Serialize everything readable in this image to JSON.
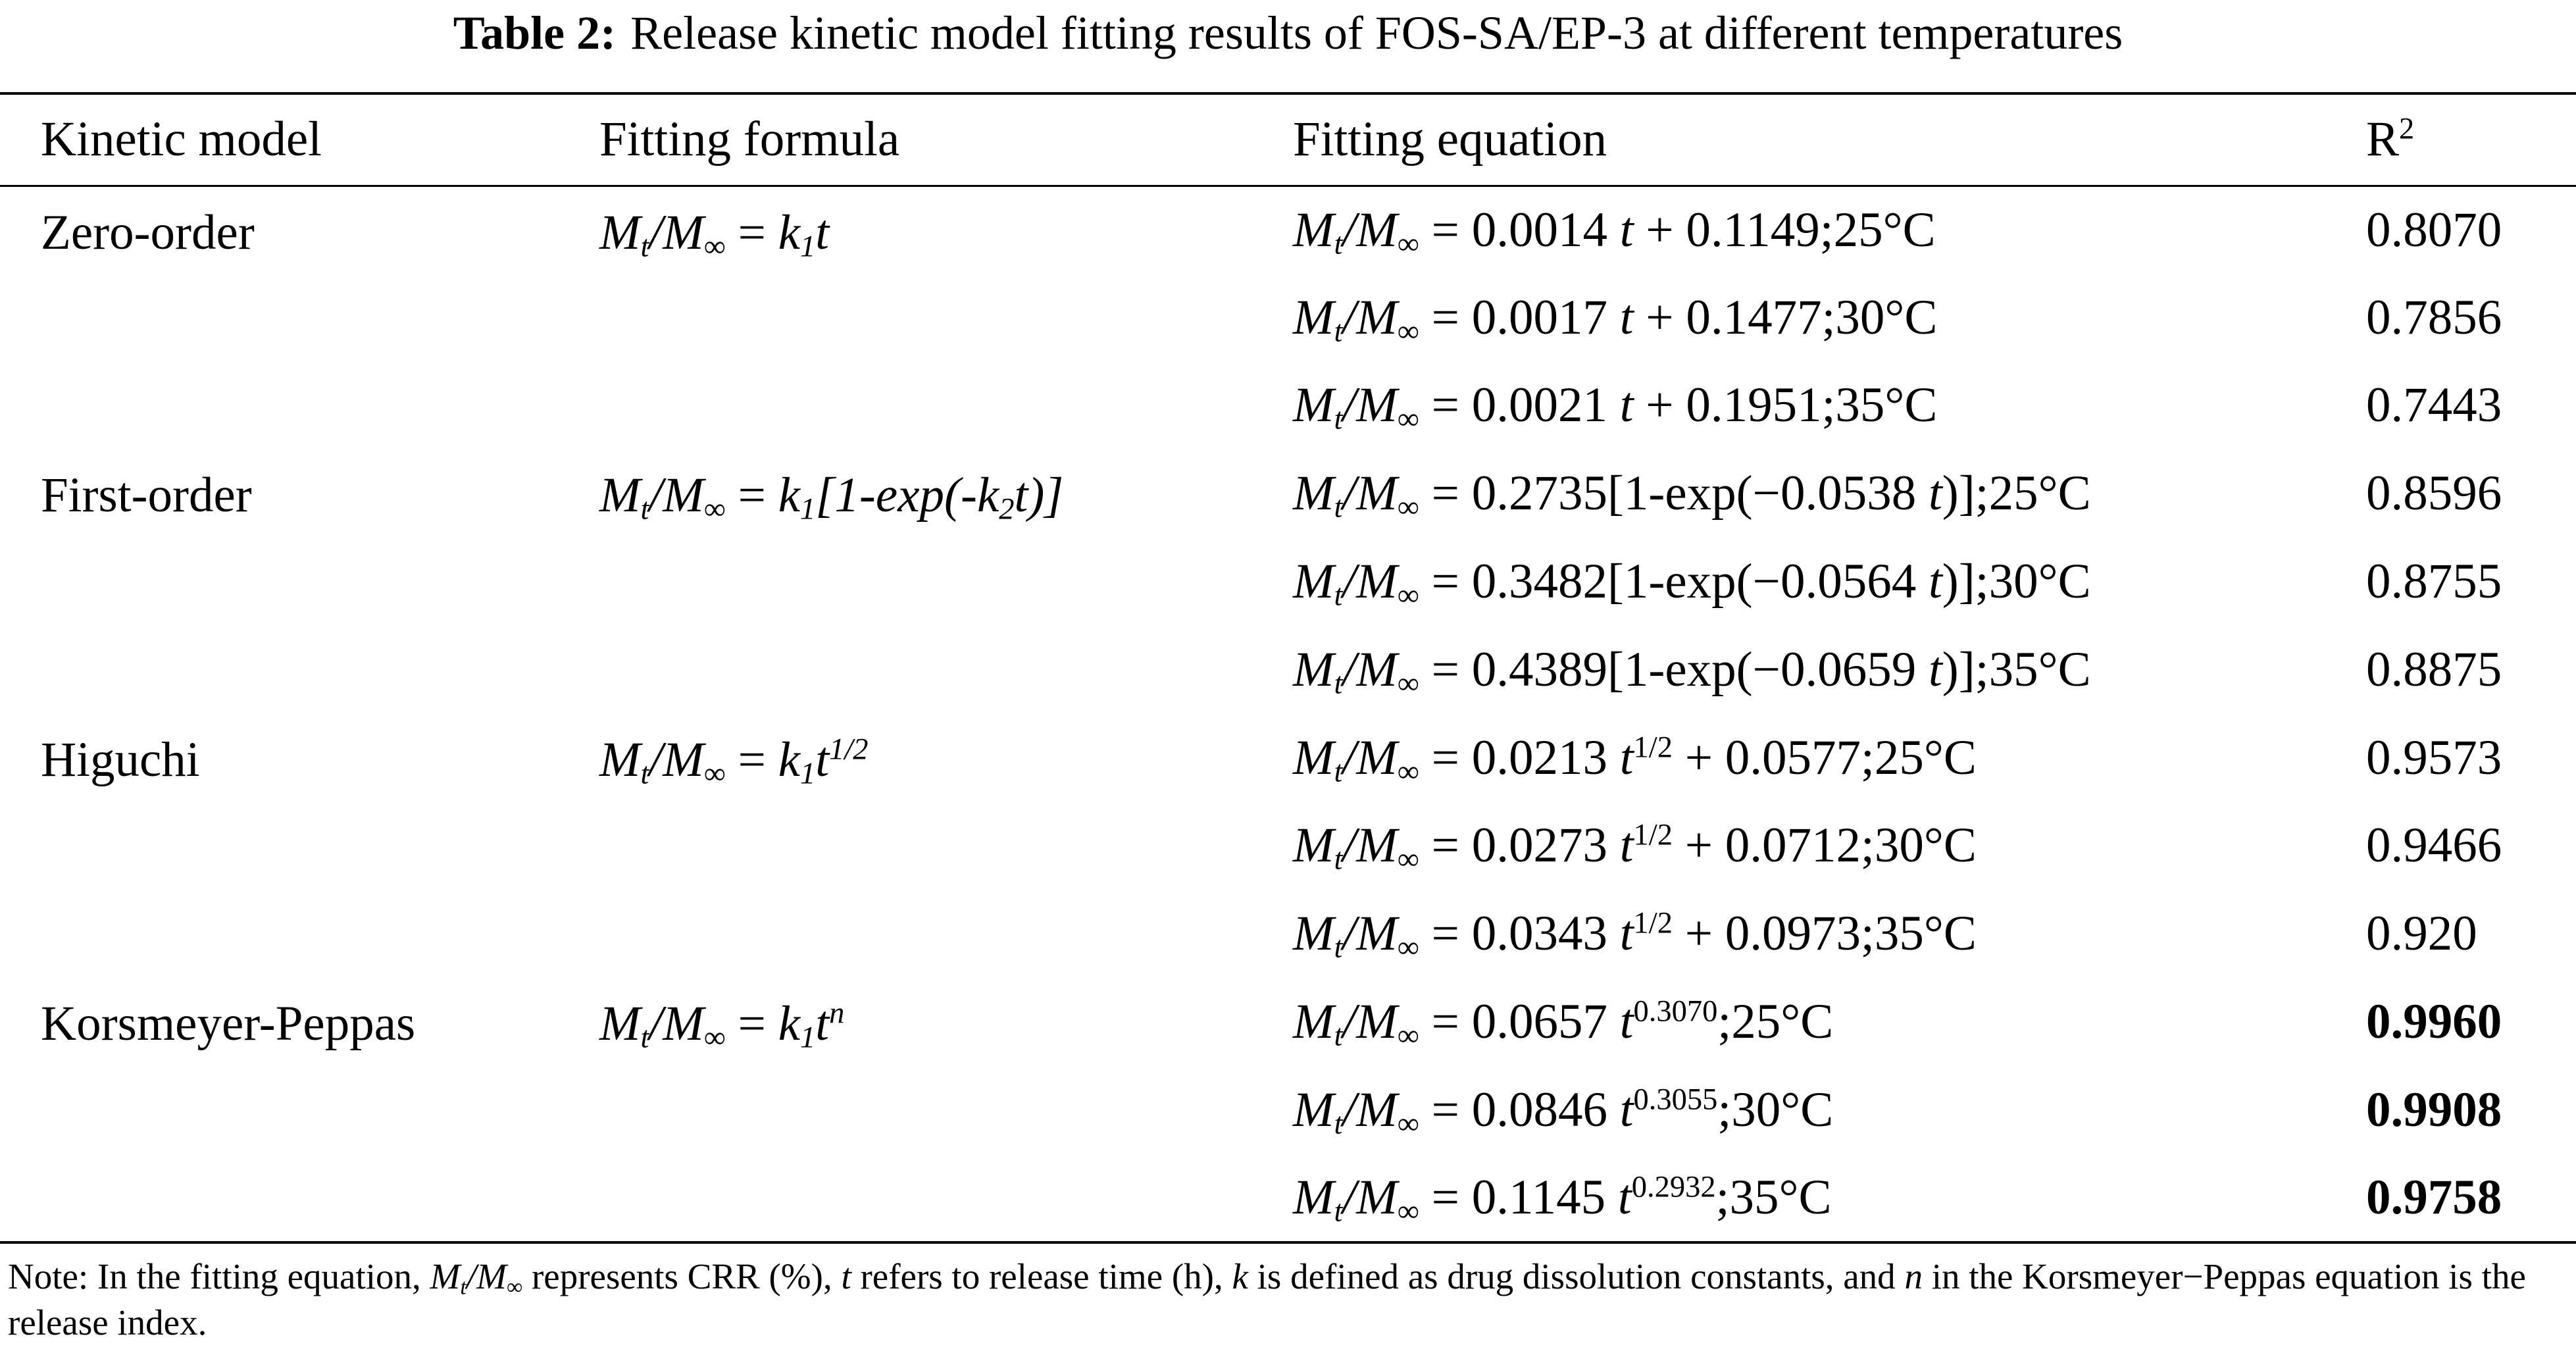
{
  "title": {
    "label": "Table 2:",
    "text": "Release kinetic model fitting results of FOS-SA/EP-3 at different temperatures"
  },
  "table": {
    "header": [
      [
        {
          "t": "Kinetic model"
        }
      ],
      [
        {
          "t": "Fitting formula"
        }
      ],
      [
        {
          "t": "Fitting equation"
        }
      ],
      [
        {
          "t": "R"
        },
        {
          "t": "2",
          "f": "sup"
        }
      ]
    ],
    "groups": [
      {
        "model": "Zero-order",
        "formula": [
          {
            "t": "M",
            "f": "i"
          },
          {
            "t": "t",
            "f": "isub"
          },
          {
            "t": "/M",
            "f": "i"
          },
          {
            "t": "∞",
            "f": "sub"
          },
          {
            "t": " = "
          },
          {
            "t": "k",
            "f": "i"
          },
          {
            "t": "1",
            "f": "isub"
          },
          {
            "t": "t",
            "f": "i"
          }
        ],
        "fits": [
          {
            "equation": [
              {
                "t": "M",
                "f": "i"
              },
              {
                "t": "t",
                "f": "isub"
              },
              {
                "t": "/M",
                "f": "i"
              },
              {
                "t": "∞",
                "f": "sub"
              },
              {
                "t": " = 0.0014 "
              },
              {
                "t": "t",
                "f": "i"
              },
              {
                "t": " + 0.1149;25°C"
              }
            ],
            "r2": "0.8070"
          },
          {
            "equation": [
              {
                "t": "M",
                "f": "i"
              },
              {
                "t": "t",
                "f": "isub"
              },
              {
                "t": "/M",
                "f": "i"
              },
              {
                "t": "∞",
                "f": "sub"
              },
              {
                "t": " = 0.0017 "
              },
              {
                "t": "t",
                "f": "i"
              },
              {
                "t": " + 0.1477;30°C"
              }
            ],
            "r2": "0.7856"
          },
          {
            "equation": [
              {
                "t": "M",
                "f": "i"
              },
              {
                "t": "t",
                "f": "isub"
              },
              {
                "t": "/M",
                "f": "i"
              },
              {
                "t": "∞",
                "f": "sub"
              },
              {
                "t": " = 0.0021 "
              },
              {
                "t": "t",
                "f": "i"
              },
              {
                "t": " + 0.1951;35°C"
              }
            ],
            "r2": "0.7443"
          }
        ]
      },
      {
        "model": "First-order",
        "formula": [
          {
            "t": "M",
            "f": "i"
          },
          {
            "t": "t",
            "f": "isub"
          },
          {
            "t": "/M",
            "f": "i"
          },
          {
            "t": "∞",
            "f": "sub"
          },
          {
            "t": " = "
          },
          {
            "t": "k",
            "f": "i"
          },
          {
            "t": "1",
            "f": "isub"
          },
          {
            "t": "[1-exp(-k",
            "f": "i"
          },
          {
            "t": "2",
            "f": "isub"
          },
          {
            "t": "t)]",
            "f": "i"
          }
        ],
        "fits": [
          {
            "equation": [
              {
                "t": "M",
                "f": "i"
              },
              {
                "t": "t",
                "f": "isub"
              },
              {
                "t": "/M",
                "f": "i"
              },
              {
                "t": "∞",
                "f": "sub"
              },
              {
                "t": " = 0.2735[1-exp(−0.0538 "
              },
              {
                "t": "t",
                "f": "i"
              },
              {
                "t": ")];25°C"
              }
            ],
            "r2": "0.8596"
          },
          {
            "equation": [
              {
                "t": "M",
                "f": "i"
              },
              {
                "t": "t",
                "f": "isub"
              },
              {
                "t": "/M",
                "f": "i"
              },
              {
                "t": "∞",
                "f": "sub"
              },
              {
                "t": " = 0.3482[1-exp(−0.0564 "
              },
              {
                "t": "t",
                "f": "i"
              },
              {
                "t": ")];30°C"
              }
            ],
            "r2": "0.8755"
          },
          {
            "equation": [
              {
                "t": "M",
                "f": "i"
              },
              {
                "t": "t",
                "f": "isub"
              },
              {
                "t": "/M",
                "f": "i"
              },
              {
                "t": "∞",
                "f": "sub"
              },
              {
                "t": " = 0.4389[1-exp(−0.0659 "
              },
              {
                "t": "t",
                "f": "i"
              },
              {
                "t": ")];35°C"
              }
            ],
            "r2": "0.8875"
          }
        ]
      },
      {
        "model": "Higuchi",
        "formula": [
          {
            "t": "M",
            "f": "i"
          },
          {
            "t": "t",
            "f": "isub"
          },
          {
            "t": "/M",
            "f": "i"
          },
          {
            "t": "∞",
            "f": "sub"
          },
          {
            "t": " = "
          },
          {
            "t": "k",
            "f": "i"
          },
          {
            "t": "1",
            "f": "isub"
          },
          {
            "t": "t",
            "f": "i"
          },
          {
            "t": "1/2",
            "f": "isup"
          }
        ],
        "fits": [
          {
            "equation": [
              {
                "t": "M",
                "f": "i"
              },
              {
                "t": "t",
                "f": "isub"
              },
              {
                "t": "/M",
                "f": "i"
              },
              {
                "t": "∞",
                "f": "sub"
              },
              {
                "t": " = 0.0213 "
              },
              {
                "t": "t",
                "f": "i"
              },
              {
                "t": "1/2",
                "f": "sup"
              },
              {
                "t": " + 0.0577;25°C"
              }
            ],
            "r2": "0.9573"
          },
          {
            "equation": [
              {
                "t": "M",
                "f": "i"
              },
              {
                "t": "t",
                "f": "isub"
              },
              {
                "t": "/M",
                "f": "i"
              },
              {
                "t": "∞",
                "f": "sub"
              },
              {
                "t": " = 0.0273 "
              },
              {
                "t": "t",
                "f": "i"
              },
              {
                "t": "1/2",
                "f": "sup"
              },
              {
                "t": " + 0.0712;30°C"
              }
            ],
            "r2": "0.9466"
          },
          {
            "equation": [
              {
                "t": "M",
                "f": "i"
              },
              {
                "t": "t",
                "f": "isub"
              },
              {
                "t": "/M",
                "f": "i"
              },
              {
                "t": "∞",
                "f": "sub"
              },
              {
                "t": " = 0.0343 "
              },
              {
                "t": "t",
                "f": "i"
              },
              {
                "t": "1/2",
                "f": "sup"
              },
              {
                "t": " + 0.0973;35°C"
              }
            ],
            "r2": "0.920"
          }
        ]
      },
      {
        "model": "Korsmeyer-Peppas",
        "r2_bold": true,
        "formula": [
          {
            "t": "M",
            "f": "i"
          },
          {
            "t": "t",
            "f": "isub"
          },
          {
            "t": "/M",
            "f": "i"
          },
          {
            "t": "∞",
            "f": "sub"
          },
          {
            "t": " = "
          },
          {
            "t": "k",
            "f": "i"
          },
          {
            "t": "1",
            "f": "isub"
          },
          {
            "t": "t",
            "f": "i"
          },
          {
            "t": "n",
            "f": "isup"
          }
        ],
        "fits": [
          {
            "equation": [
              {
                "t": "M",
                "f": "i"
              },
              {
                "t": "t",
                "f": "isub"
              },
              {
                "t": "/M",
                "f": "i"
              },
              {
                "t": "∞",
                "f": "sub"
              },
              {
                "t": " = 0.0657 "
              },
              {
                "t": "t",
                "f": "i"
              },
              {
                "t": "0.3070",
                "f": "sup"
              },
              {
                "t": ";25°C"
              }
            ],
            "r2": "0.9960"
          },
          {
            "equation": [
              {
                "t": "M",
                "f": "i"
              },
              {
                "t": "t",
                "f": "isub"
              },
              {
                "t": "/M",
                "f": "i"
              },
              {
                "t": "∞",
                "f": "sub"
              },
              {
                "t": " = 0.0846 "
              },
              {
                "t": "t",
                "f": "i"
              },
              {
                "t": "0.3055",
                "f": "sup"
              },
              {
                "t": ";30°C"
              }
            ],
            "r2": "0.9908"
          },
          {
            "equation": [
              {
                "t": "M",
                "f": "i"
              },
              {
                "t": "t",
                "f": "isub"
              },
              {
                "t": "/M",
                "f": "i"
              },
              {
                "t": "∞",
                "f": "sub"
              },
              {
                "t": " = 0.1145 "
              },
              {
                "t": "t",
                "f": "i"
              },
              {
                "t": "0.2932",
                "f": "sup"
              },
              {
                "t": ";35°C"
              }
            ],
            "r2": "0.9758"
          }
        ]
      }
    ]
  },
  "note": [
    {
      "t": "Note: In the fitting equation, "
    },
    {
      "t": "M",
      "f": "i"
    },
    {
      "t": "t",
      "f": "isub"
    },
    {
      "t": "/M",
      "f": "i"
    },
    {
      "t": "∞",
      "f": "sub"
    },
    {
      "t": " represents CRR (%), "
    },
    {
      "t": "t",
      "f": "i"
    },
    {
      "t": " refers to release time (h), "
    },
    {
      "t": "k",
      "f": "i"
    },
    {
      "t": " is defined as drug dissolution constants, and "
    },
    {
      "t": "n",
      "f": "i"
    },
    {
      "t": " in the Korsmeyer−Peppas equation is the release index."
    }
  ]
}
